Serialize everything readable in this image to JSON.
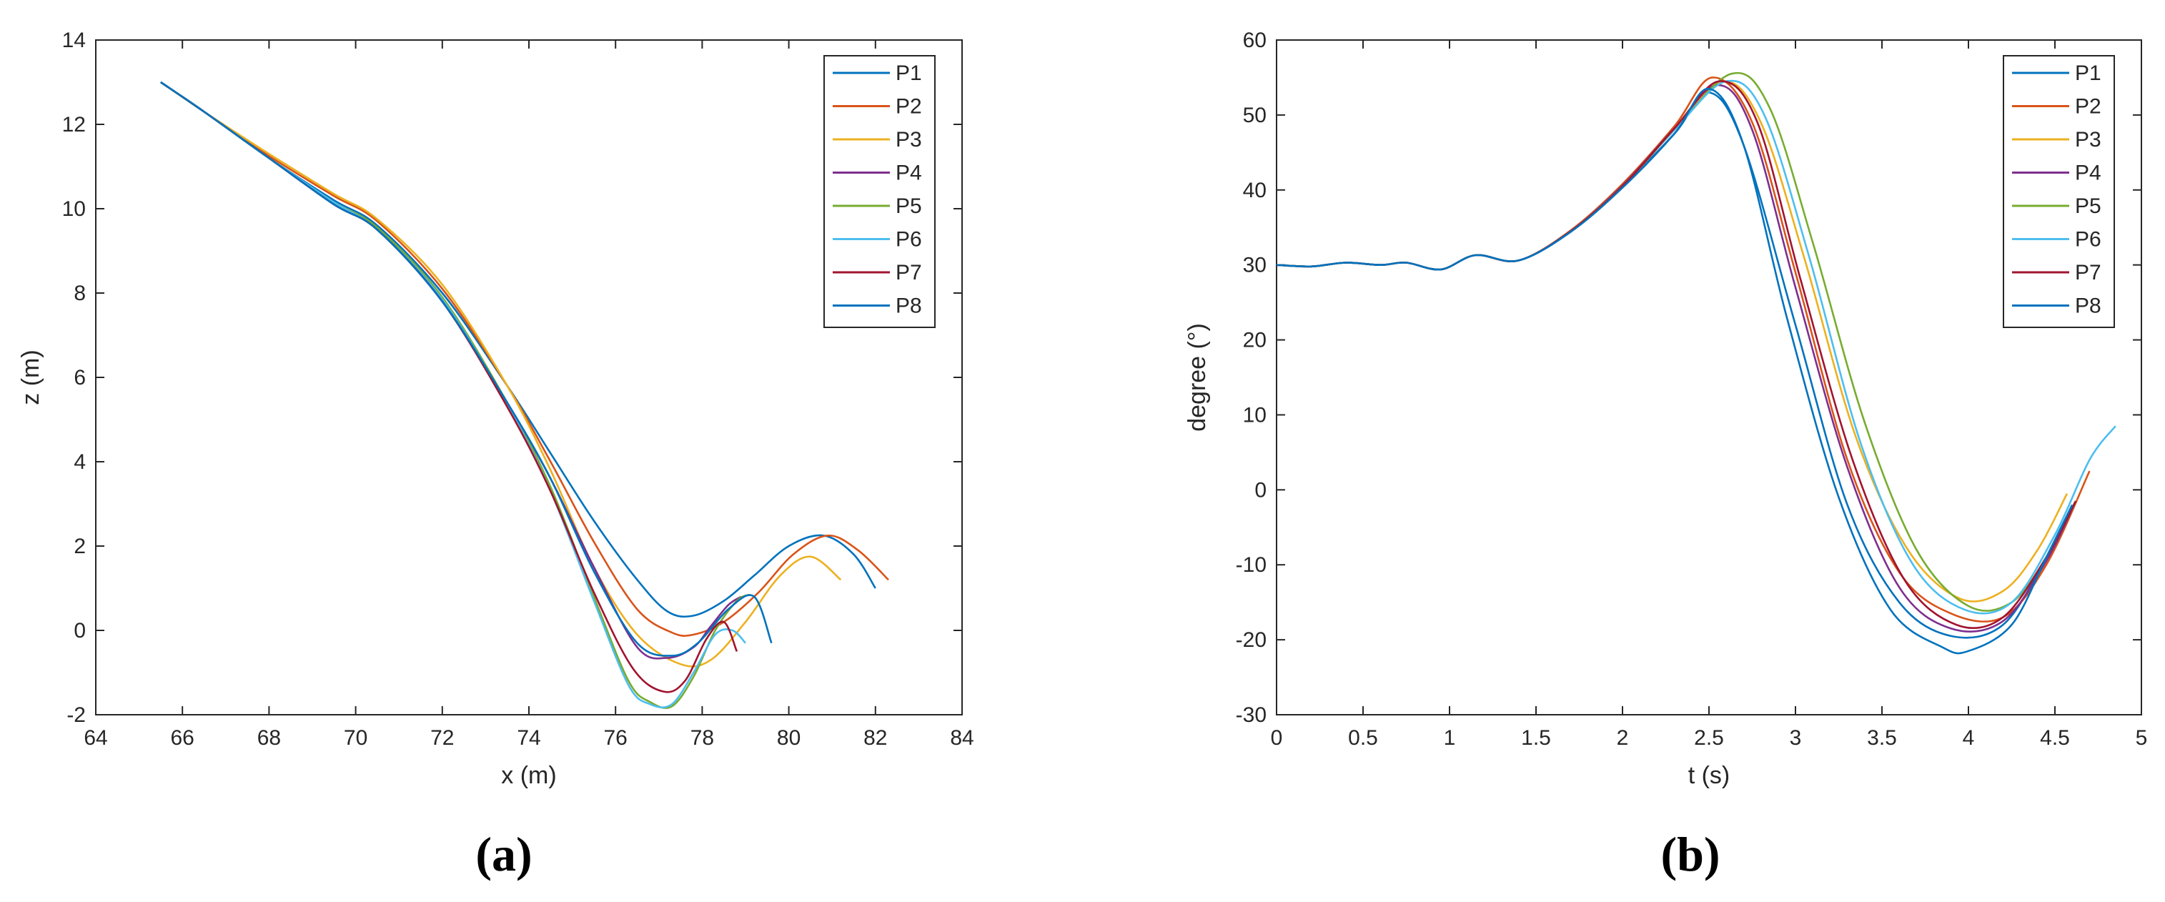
{
  "colors": {
    "P1": "#0072BD",
    "P2": "#D95319",
    "P3": "#EDB120",
    "P4": "#7E2F8E",
    "P5": "#77AC30",
    "P6": "#4DBEEE",
    "P7": "#A2142F",
    "P8": "#0072BD"
  },
  "chart_data": [
    {
      "type": "line",
      "panel_label": "(a)",
      "xlabel": "x (m)",
      "ylabel": "z (m)",
      "xlim": [
        64,
        84
      ],
      "ylim": [
        -2,
        14
      ],
      "xticks": [
        64,
        66,
        68,
        70,
        72,
        74,
        76,
        78,
        80,
        82,
        84
      ],
      "yticks": [
        -2,
        0,
        2,
        4,
        6,
        8,
        10,
        12,
        14
      ],
      "legend_location": "top-right",
      "grid": false,
      "series": [
        {
          "name": "P1",
          "x": [
            65.5,
            66.5,
            68,
            69.5,
            70.5,
            72,
            73.5,
            74.5,
            75.5,
            76.5,
            77.2,
            77.8,
            78.5,
            79.2,
            80,
            80.8,
            81.5,
            82
          ],
          "y": [
            13.0,
            12.3,
            11.2,
            10.2,
            9.6,
            8.0,
            5.8,
            4.2,
            2.6,
            1.2,
            0.45,
            0.35,
            0.7,
            1.3,
            2.0,
            2.25,
            1.8,
            1.0
          ]
        },
        {
          "name": "P2",
          "x": [
            65.5,
            66.5,
            68,
            69.5,
            70.5,
            72,
            73.5,
            74.5,
            75.5,
            76.5,
            77.3,
            77.8,
            78.5,
            79.3,
            80.1,
            80.9,
            81.6,
            82.3
          ],
          "y": [
            13.0,
            12.3,
            11.25,
            10.3,
            9.7,
            8.1,
            5.8,
            4.0,
            2.1,
            0.5,
            -0.05,
            -0.1,
            0.2,
            0.9,
            1.8,
            2.25,
            1.9,
            1.2
          ]
        },
        {
          "name": "P3",
          "x": [
            65.5,
            66.5,
            68,
            69.5,
            70.5,
            72,
            73.5,
            74.5,
            75.5,
            76.5,
            77.5,
            78.2,
            79,
            79.8,
            80.5,
            81.2
          ],
          "y": [
            13.0,
            12.3,
            11.3,
            10.35,
            9.75,
            8.2,
            5.8,
            3.8,
            1.5,
            -0.1,
            -0.8,
            -0.7,
            0.2,
            1.3,
            1.75,
            1.2
          ]
        },
        {
          "name": "P4",
          "x": [
            65.5,
            66.5,
            68,
            69.5,
            70.5,
            72,
            73.5,
            74.5,
            75.5,
            76.5,
            77.2,
            77.8,
            78.2,
            78.6,
            78.9
          ],
          "y": [
            13.0,
            12.3,
            11.2,
            10.1,
            9.5,
            7.8,
            5.4,
            3.6,
            1.5,
            -0.4,
            -0.65,
            -0.4,
            0.1,
            0.6,
            0.8
          ]
        },
        {
          "name": "P5",
          "x": [
            65.5,
            66.5,
            68,
            69.5,
            70.5,
            72,
            73.5,
            74.5,
            75.5,
            76.3,
            76.8,
            77.3,
            77.8,
            78.3,
            78.8,
            79.1
          ],
          "y": [
            13.0,
            12.3,
            11.2,
            10.15,
            9.55,
            7.9,
            5.4,
            3.4,
            0.8,
            -1.2,
            -1.7,
            -1.8,
            -1.1,
            0.0,
            0.7,
            0.85
          ]
        },
        {
          "name": "P6",
          "x": [
            65.5,
            66.5,
            68,
            69.5,
            70.5,
            72,
            73.5,
            74.5,
            75.5,
            76.3,
            76.8,
            77.3,
            77.8,
            78.3,
            78.7,
            79.0
          ],
          "y": [
            13.0,
            12.3,
            11.2,
            10.15,
            9.5,
            7.85,
            5.35,
            3.3,
            0.7,
            -1.3,
            -1.75,
            -1.75,
            -1.0,
            -0.1,
            0.0,
            -0.3
          ]
        },
        {
          "name": "P7",
          "x": [
            65.5,
            66.5,
            68,
            69.5,
            70.5,
            72,
            73.5,
            74.5,
            75.5,
            76.4,
            77.1,
            77.6,
            78.1,
            78.5,
            78.8
          ],
          "y": [
            13.0,
            12.3,
            11.2,
            10.1,
            9.5,
            7.8,
            5.3,
            3.3,
            0.9,
            -0.9,
            -1.45,
            -1.2,
            -0.2,
            0.2,
            -0.5
          ]
        },
        {
          "name": "P8",
          "x": [
            65.5,
            66.5,
            68,
            69.5,
            70.5,
            72,
            73.5,
            74.5,
            75.5,
            76.5,
            77.3,
            77.9,
            78.6,
            79.2,
            79.6
          ],
          "y": [
            13.0,
            12.3,
            11.2,
            10.1,
            9.5,
            7.8,
            5.4,
            3.6,
            1.4,
            -0.3,
            -0.6,
            -0.3,
            0.5,
            0.8,
            -0.3
          ]
        }
      ]
    },
    {
      "type": "line",
      "panel_label": "(b)",
      "xlabel": "t (s)",
      "ylabel": "degree (°)",
      "xlim": [
        0,
        5
      ],
      "ylim": [
        -30,
        60
      ],
      "xticks": [
        0,
        0.5,
        1,
        1.5,
        2,
        2.5,
        3,
        3.5,
        4,
        4.5,
        5
      ],
      "yticks": [
        -30,
        -20,
        -10,
        0,
        10,
        20,
        30,
        40,
        50,
        60
      ],
      "legend_location": "top-right",
      "grid": false,
      "series": [
        {
          "name": "P1",
          "x": [
            0,
            0.2,
            0.4,
            0.6,
            0.75,
            0.95,
            1.15,
            1.4,
            1.7,
            2.0,
            2.3,
            2.5,
            2.7,
            3.0,
            3.3,
            3.6,
            3.9,
            4.2,
            4.45,
            4.6
          ],
          "y": [
            30,
            29.8,
            30.3,
            30.0,
            30.3,
            29.4,
            31.3,
            30.6,
            34.5,
            40.5,
            47.5,
            53.0,
            46.0,
            22.0,
            -2.0,
            -15.0,
            -19.5,
            -18.0,
            -9.0,
            -2.0
          ]
        },
        {
          "name": "P2",
          "x": [
            0,
            0.2,
            0.4,
            0.6,
            0.75,
            0.95,
            1.15,
            1.4,
            1.7,
            2.0,
            2.3,
            2.52,
            2.75,
            3.0,
            3.3,
            3.6,
            3.9,
            4.2,
            4.45,
            4.7
          ],
          "y": [
            30,
            29.8,
            30.3,
            30.0,
            30.3,
            29.4,
            31.3,
            30.6,
            34.6,
            40.8,
            48.5,
            55.0,
            49.0,
            29.0,
            4.0,
            -11.0,
            -16.5,
            -17.0,
            -10.0,
            2.5
          ]
        },
        {
          "name": "P3",
          "x": [
            0,
            0.2,
            0.4,
            0.6,
            0.75,
            0.95,
            1.15,
            1.4,
            1.7,
            2.0,
            2.3,
            2.58,
            2.8,
            3.05,
            3.35,
            3.65,
            3.95,
            4.2,
            4.4,
            4.57
          ],
          "y": [
            30,
            29.8,
            30.3,
            30.0,
            30.3,
            29.4,
            31.3,
            30.6,
            34.5,
            40.5,
            48.0,
            54.5,
            49.0,
            31.0,
            7.0,
            -8.0,
            -14.5,
            -13.5,
            -8.0,
            -0.5
          ]
        },
        {
          "name": "P4",
          "x": [
            0,
            0.2,
            0.4,
            0.6,
            0.75,
            0.95,
            1.15,
            1.4,
            1.7,
            2.0,
            2.3,
            2.55,
            2.75,
            3.0,
            3.3,
            3.6,
            3.9,
            4.2,
            4.45,
            4.62
          ],
          "y": [
            30,
            29.8,
            30.3,
            30.0,
            30.3,
            29.4,
            31.3,
            30.6,
            34.5,
            40.6,
            48.2,
            54.0,
            48.0,
            27.0,
            3.0,
            -13.0,
            -18.5,
            -17.5,
            -9.5,
            -1.5
          ]
        },
        {
          "name": "P5",
          "x": [
            0,
            0.2,
            0.4,
            0.6,
            0.75,
            0.95,
            1.15,
            1.4,
            1.7,
            2.0,
            2.3,
            2.63,
            2.85,
            3.1,
            3.4,
            3.7,
            4.0,
            4.25,
            4.45,
            4.62
          ],
          "y": [
            30,
            29.8,
            30.3,
            30.0,
            30.3,
            29.4,
            31.3,
            30.6,
            34.5,
            40.5,
            48.0,
            55.5,
            51.0,
            33.0,
            9.0,
            -8.0,
            -15.5,
            -15.0,
            -9.0,
            -1.5
          ]
        },
        {
          "name": "P6",
          "x": [
            0,
            0.2,
            0.4,
            0.6,
            0.75,
            0.95,
            1.15,
            1.4,
            1.7,
            2.0,
            2.3,
            2.6,
            2.82,
            3.08,
            3.38,
            3.68,
            3.98,
            4.25,
            4.5,
            4.7,
            4.85
          ],
          "y": [
            30,
            29.8,
            30.3,
            30.0,
            30.3,
            29.4,
            31.3,
            30.6,
            34.5,
            40.5,
            48.0,
            54.5,
            50.0,
            31.0,
            6.0,
            -10.0,
            -16.0,
            -15.0,
            -6.0,
            4.0,
            8.5
          ]
        },
        {
          "name": "P7",
          "x": [
            0,
            0.2,
            0.4,
            0.6,
            0.75,
            0.95,
            1.15,
            1.4,
            1.7,
            2.0,
            2.3,
            2.56,
            2.78,
            3.03,
            3.33,
            3.63,
            3.93,
            4.2,
            4.45,
            4.62
          ],
          "y": [
            30,
            29.8,
            30.3,
            30.0,
            30.3,
            29.4,
            31.3,
            30.6,
            34.5,
            40.5,
            48.2,
            54.5,
            49.0,
            28.0,
            4.0,
            -12.0,
            -18.0,
            -17.0,
            -9.0,
            -1.5
          ]
        },
        {
          "name": "P8",
          "x": [
            0,
            0.2,
            0.4,
            0.6,
            0.75,
            0.95,
            1.15,
            1.4,
            1.7,
            2.0,
            2.3,
            2.5,
            2.7,
            2.95,
            3.25,
            3.55,
            3.85,
            4.0,
            4.25,
            4.45,
            4.6
          ],
          "y": [
            30,
            29.8,
            30.3,
            30.0,
            30.3,
            29.4,
            31.3,
            30.6,
            34.4,
            40.3,
            47.5,
            53.5,
            46.0,
            23.0,
            -1.0,
            -16.0,
            -21.0,
            -21.5,
            -18.0,
            -9.0,
            -2.0
          ]
        }
      ]
    }
  ]
}
